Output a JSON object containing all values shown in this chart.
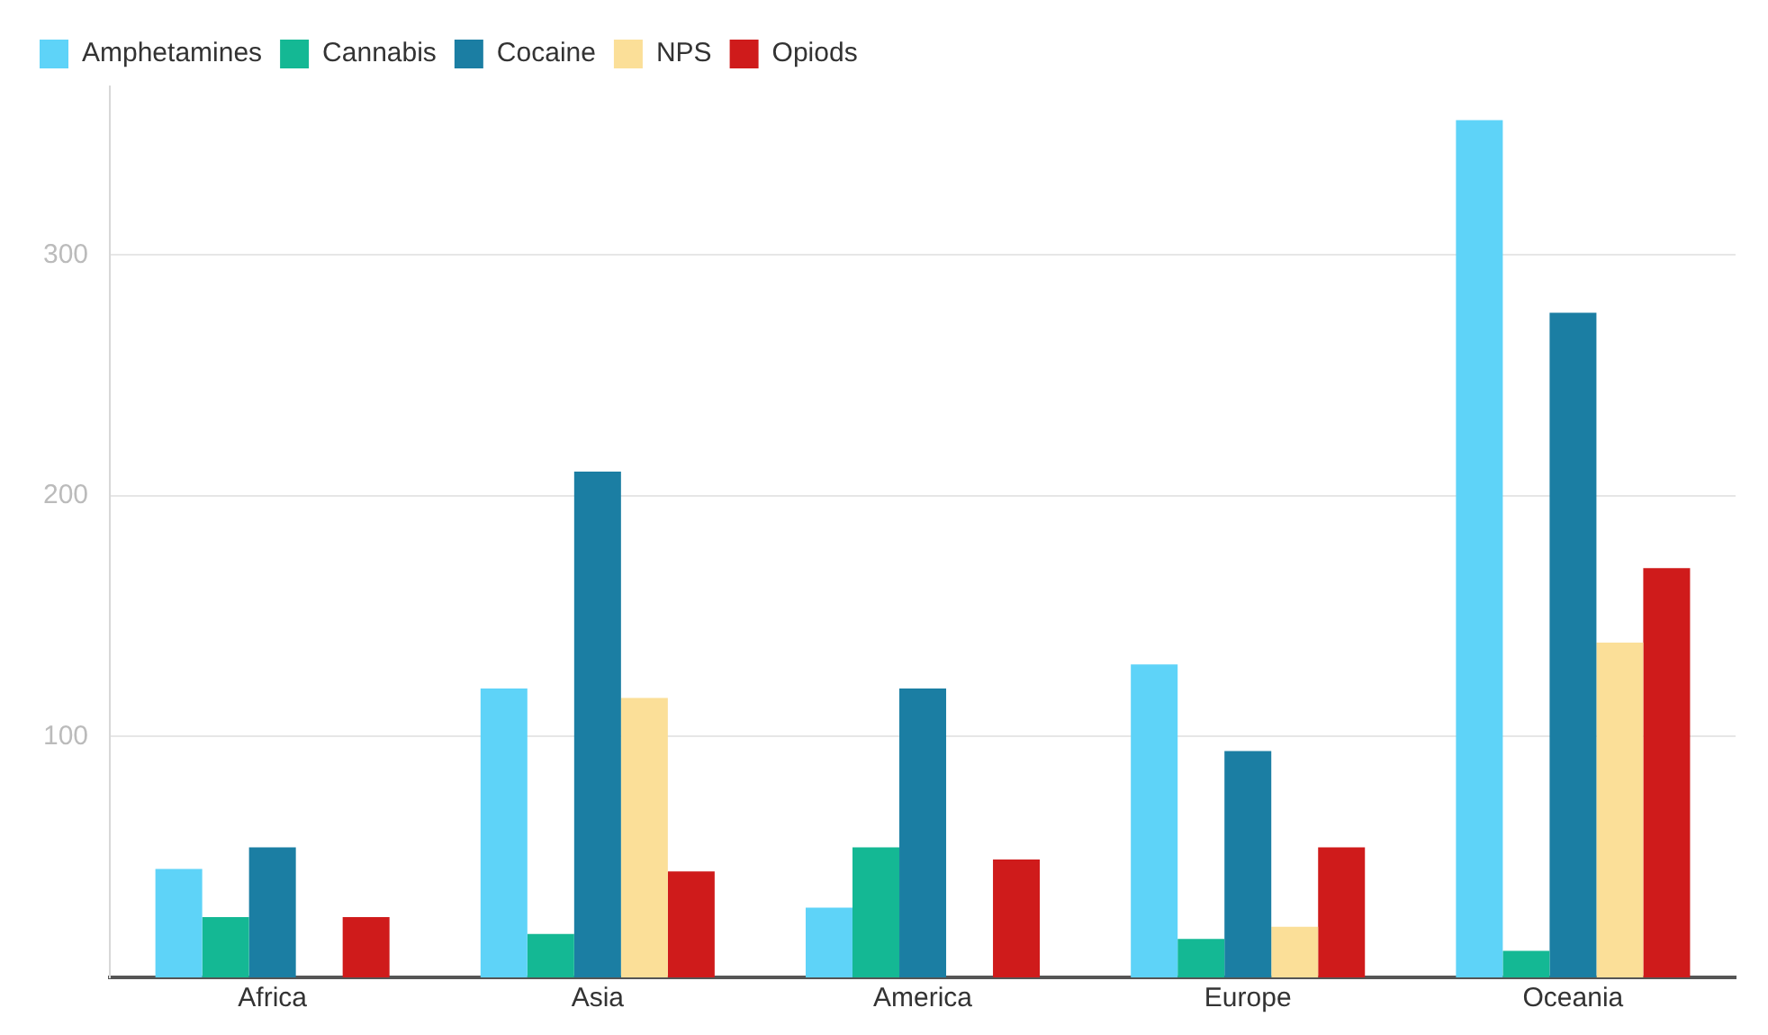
{
  "chart_data": {
    "type": "bar",
    "categories": [
      "Africa",
      "Asia",
      "America",
      "Europe",
      "Oceania"
    ],
    "series": [
      {
        "name": "Amphetamines",
        "color": "#5ed3f8",
        "values": [
          45,
          120,
          29,
          130,
          356
        ]
      },
      {
        "name": "Cannabis",
        "color": "#14b894",
        "values": [
          25,
          18,
          54,
          16,
          11
        ]
      },
      {
        "name": "Cocaine",
        "color": "#1b7ea3",
        "values": [
          54,
          210,
          120,
          94,
          276
        ]
      },
      {
        "name": "NPS",
        "color": "#fbdf98",
        "values": [
          0,
          116,
          0,
          21,
          139
        ]
      },
      {
        "name": "Opiods",
        "color": "#cf1b1b",
        "values": [
          25,
          44,
          49,
          54,
          170
        ]
      }
    ],
    "ylim": [
      0,
      370
    ],
    "yticks": [
      100,
      200,
      300
    ],
    "grid": "y",
    "legend": "top left"
  }
}
